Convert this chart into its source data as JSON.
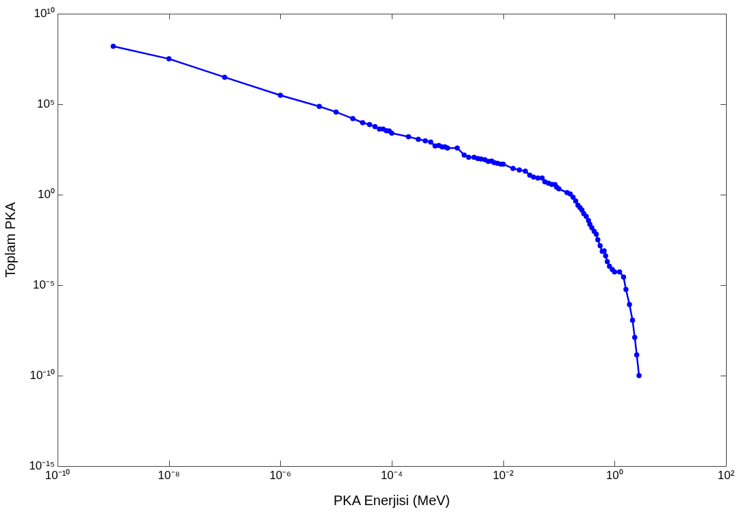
{
  "chart_data": {
    "type": "line",
    "xlabel": "PKA Enerjisi (MeV)",
    "ylabel": "Toplam PKA",
    "log": "xy",
    "grid": false,
    "legend": false,
    "marker": "circle",
    "line_style": "solid",
    "xlim": [
      1e-10,
      100
    ],
    "ylim": [
      1e-15,
      10000000000.0
    ],
    "xticks": [
      {
        "value": 1e-10,
        "label": "10⁻¹⁰"
      },
      {
        "value": 1e-08,
        "label": "10⁻⁸"
      },
      {
        "value": 1e-06,
        "label": "10⁻⁶"
      },
      {
        "value": 0.0001,
        "label": "10⁻⁴"
      },
      {
        "value": 0.01,
        "label": "10⁻²"
      },
      {
        "value": 1,
        "label": "10⁰"
      },
      {
        "value": 100,
        "label": "10²"
      }
    ],
    "yticks": [
      {
        "value": 1e-15,
        "label": "10⁻¹⁵"
      },
      {
        "value": 1e-10,
        "label": "10⁻¹⁰"
      },
      {
        "value": 1e-05,
        "label": "10⁻⁵"
      },
      {
        "value": 1,
        "label": "10⁰"
      },
      {
        "value": 100000.0,
        "label": "10⁵"
      },
      {
        "value": 10000000000.0,
        "label": "10¹⁰"
      }
    ],
    "x": [
      1e-09,
      1e-08,
      1e-07,
      1e-06,
      5e-06,
      1e-05,
      2e-05,
      3e-05,
      4e-05,
      5e-05,
      6e-05,
      7e-05,
      8e-05,
      9e-05,
      0.0001,
      0.0002,
      0.0003,
      0.0004,
      0.0005,
      0.0006,
      0.0007,
      0.0008,
      0.0009,
      0.001,
      0.0015,
      0.002,
      0.0024,
      0.003,
      0.0035,
      0.004,
      0.0047,
      0.0054,
      0.0062,
      0.0069,
      0.0079,
      0.0091,
      0.01,
      0.015,
      0.0195,
      0.025,
      0.03,
      0.035,
      0.042,
      0.05,
      0.056,
      0.065,
      0.074,
      0.085,
      0.091,
      0.1,
      0.14,
      0.16,
      0.18,
      0.2,
      0.22,
      0.24,
      0.26,
      0.28,
      0.31,
      0.34,
      0.36,
      0.39,
      0.43,
      0.47,
      0.5,
      0.55,
      0.6,
      0.65,
      0.69,
      0.74,
      0.81,
      0.91,
      1.0,
      1.23,
      1.45,
      1.6,
      1.85,
      2.1,
      2.3,
      2.5,
      2.75
    ],
    "series": [
      {
        "color": "#0000ff",
        "values": [
          160000000.0,
          32000000.0,
          3100000.0,
          310000.0,
          75000.0,
          37000.0,
          16000.0,
          9500.0,
          7500.0,
          5800.0,
          4200.0,
          4200.0,
          3400.0,
          3300.0,
          2500.0,
          1600.0,
          1150.0,
          950,
          810,
          490,
          520,
          440,
          440,
          380,
          380,
          155,
          117,
          117,
          100,
          93,
          85,
          69,
          72,
          59,
          54,
          49,
          49,
          28,
          23,
          20,
          12,
          9.5,
          8.3,
          8.3,
          5.1,
          4.3,
          3.7,
          3.6,
          2.6,
          2.1,
          1.3,
          1.1,
          0.72,
          0.45,
          0.26,
          0.19,
          0.14,
          0.089,
          0.063,
          0.037,
          0.023,
          0.015,
          0.0095,
          0.0065,
          0.0032,
          0.0015,
          0.00074,
          0.00078,
          0.00042,
          0.0002,
          0.00011,
          7.2e-05,
          5.4e-05,
          5.4e-05,
          2.8e-05,
          5.8e-06,
          8.5e-07,
          1.15e-07,
          1.3e-08,
          1.4e-09,
          1e-10
        ]
      }
    ]
  }
}
